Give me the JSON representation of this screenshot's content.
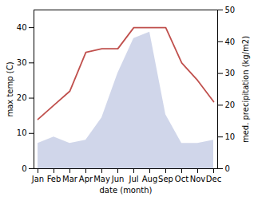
{
  "chart_data": {
    "type": "line",
    "categories": [
      "Jan",
      "Feb",
      "Mar",
      "Apr",
      "May",
      "Jun",
      "Jul",
      "Aug",
      "Sep",
      "Oct",
      "Nov",
      "Dec"
    ],
    "xlabel": "date (month)",
    "ylabel": "max temp (C)",
    "y2label": "med. precipitation (kg/m2)",
    "ylim": [
      0,
      45
    ],
    "yticks": [
      0,
      10,
      20,
      30,
      40
    ],
    "y2lim": [
      0,
      50
    ],
    "y2ticks": [
      0,
      10,
      20,
      30,
      40,
      50
    ],
    "series": [
      {
        "type": "area",
        "axis": "y2",
        "color": "#aab4d8",
        "values": [
          8,
          10,
          8,
          9,
          16,
          30,
          41,
          43,
          17,
          8,
          8,
          9
        ]
      },
      {
        "type": "line",
        "color": "#c0504d",
        "values": [
          14,
          18,
          22,
          33,
          34,
          34,
          40,
          40,
          40,
          30,
          25,
          19
        ]
      }
    ]
  }
}
